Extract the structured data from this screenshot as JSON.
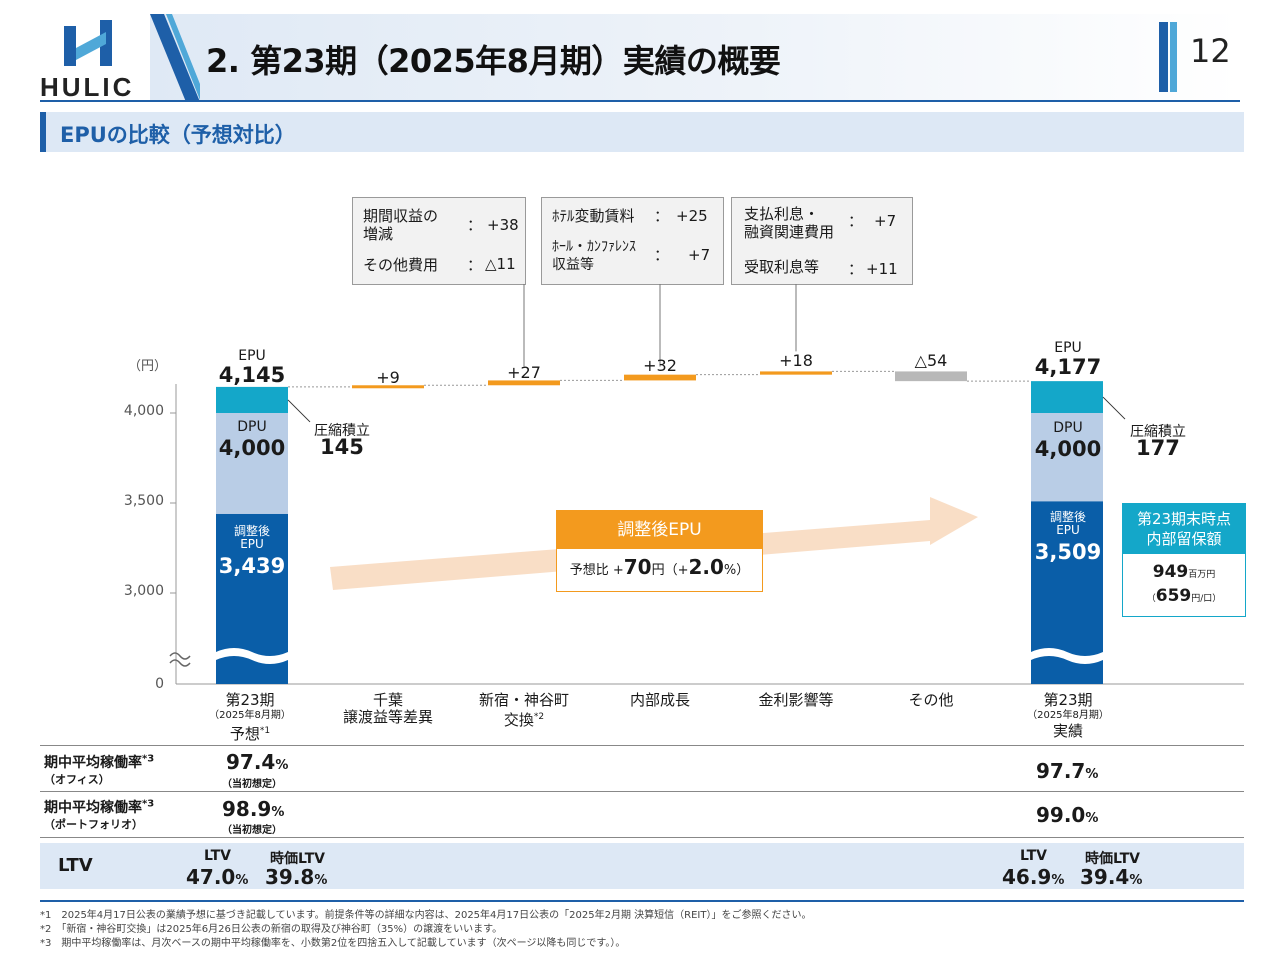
{
  "header": {
    "logo": "HULIC",
    "title": "2. 第23期（2025年8月期）実績の概要",
    "page_number": "12"
  },
  "section": {
    "title": "EPUの比較（予想対比）"
  },
  "callouts": [
    {
      "rows": [
        {
          "label": "期間収益の\n増減",
          "sep": "：",
          "value": "+38"
        },
        {
          "label": "その他費用",
          "sep": "：",
          "value": "△11"
        }
      ]
    },
    {
      "rows": [
        {
          "label": "ﾎﾃﾙ変動賃料",
          "sep": "：",
          "value": "+25"
        },
        {
          "label": "ﾎｰﾙ・ｶﾝﾌｧﾚﾝｽ\n収益等",
          "sep": "：",
          "value": "+7"
        }
      ]
    },
    {
      "rows": [
        {
          "label": "支払利息・\n融資関連費用",
          "sep": "：",
          "value": "+7"
        },
        {
          "label": "受取利息等",
          "sep": "：",
          "value": "+11"
        }
      ]
    }
  ],
  "chart_data": {
    "type": "bar",
    "subtype": "waterfall",
    "ylabel": "（円）",
    "y_ticks": [
      "4,000",
      "3,500",
      "3,000",
      "0"
    ],
    "axis_break": true,
    "categories": [
      {
        "name": "第23期",
        "sub": "（2025年8月期）",
        "name2": "予想",
        "note": "*1"
      },
      {
        "name": "千葉",
        "name2": "譲渡益等差異"
      },
      {
        "name": "新宿・神谷町",
        "name2": "交換",
        "note": "*2"
      },
      {
        "name": "内部成長"
      },
      {
        "name": "金利影響等"
      },
      {
        "name": "その他"
      },
      {
        "name": "第23期",
        "sub": "（2025年8月期）",
        "name2": "実績"
      }
    ],
    "totals": [
      {
        "category": "第23期 予想",
        "epu": 4145,
        "dpu": 4000,
        "adjusted_epu": 3439,
        "reserve": 145,
        "labels": {
          "epu": "EPU",
          "epu_value": "4,145",
          "dpu": "DPU",
          "dpu_value": "4,000",
          "adj1": "調整後",
          "adj2": "EPU",
          "adj_value": "3,439",
          "reserve": "圧縮積立",
          "reserve_value": "145"
        }
      },
      {
        "category": "第23期 実績",
        "epu": 4177,
        "dpu": 4000,
        "adjusted_epu": 3509,
        "reserve": 177,
        "labels": {
          "epu": "EPU",
          "epu_value": "4,177",
          "dpu": "DPU",
          "dpu_value": "4,000",
          "adj1": "調整後",
          "adj2": "EPU",
          "adj_value": "3,509",
          "reserve": "圧縮積立",
          "reserve_value": "177"
        }
      }
    ],
    "deltas": [
      {
        "category": "千葉 譲渡益等差異",
        "value": 9,
        "label": "+9",
        "color": "#f39a1e"
      },
      {
        "category": "新宿・神谷町 交換",
        "value": 27,
        "label": "+27",
        "color": "#f39a1e"
      },
      {
        "category": "内部成長",
        "value": 32,
        "label": "+32",
        "color": "#f39a1e"
      },
      {
        "category": "金利影響等",
        "value": 18,
        "label": "+18",
        "color": "#f39a1e"
      },
      {
        "category": "その他",
        "value": -54,
        "label": "△54",
        "color": "#b8b8b8"
      }
    ],
    "colors": {
      "epu_top": "#14a7c9",
      "dpu": "#b9cde6",
      "adjusted": "#0a5ea8",
      "increase": "#f39a1e",
      "decrease": "#b8b8b8",
      "arrow": "#f8d8bc"
    }
  },
  "adjusted_box": {
    "title": "調整後EPU",
    "prefix": "予想比 +",
    "value": "70",
    "unit": "円（+",
    "pct": "2.0",
    "suffix": "%）"
  },
  "reserve_box": {
    "title1": "第23期末時点",
    "title2": "内部留保額",
    "value1": "949",
    "unit1": "百万円",
    "open2": "（",
    "value2": "659",
    "unit2": "円/口）"
  },
  "table": {
    "occupancy_office": {
      "label": "期中平均稼働率",
      "note": "*3",
      "sub": "（オフィス）",
      "forecast": "97.4",
      "forecast_note": "（当初想定）",
      "actual": "97.7",
      "unit": "%"
    },
    "occupancy_portfolio": {
      "label": "期中平均稼働率",
      "note": "*3",
      "sub": "（ポートフォリオ）",
      "forecast": "98.9",
      "forecast_note": "（当初想定）",
      "actual": "99.0",
      "unit": "%"
    },
    "ltv": {
      "label": "LTV",
      "col1": "LTV",
      "col2": "時価LTV",
      "forecast_ltv": "47.0",
      "forecast_mv": "39.8",
      "actual_ltv": "46.9",
      "actual_mv": "39.4",
      "unit": "%"
    }
  },
  "footnotes": [
    "*1　2025年4月17日公表の業績予想に基づき記載しています。前提条件等の詳細な内容は、2025年4月17日公表の「2025年2月期 決算短信（REIT）」をご参照ください。",
    "*2　「新宿・神谷町交換」は2025年6月26日公表の新宿の取得及び神谷町（35%）の譲渡をいいます。",
    "*3　期中平均稼働率は、月次ベースの期中平均稼働率を、小数第2位を四捨五入して記載しています（次ページ以降も同じです。）。"
  ]
}
